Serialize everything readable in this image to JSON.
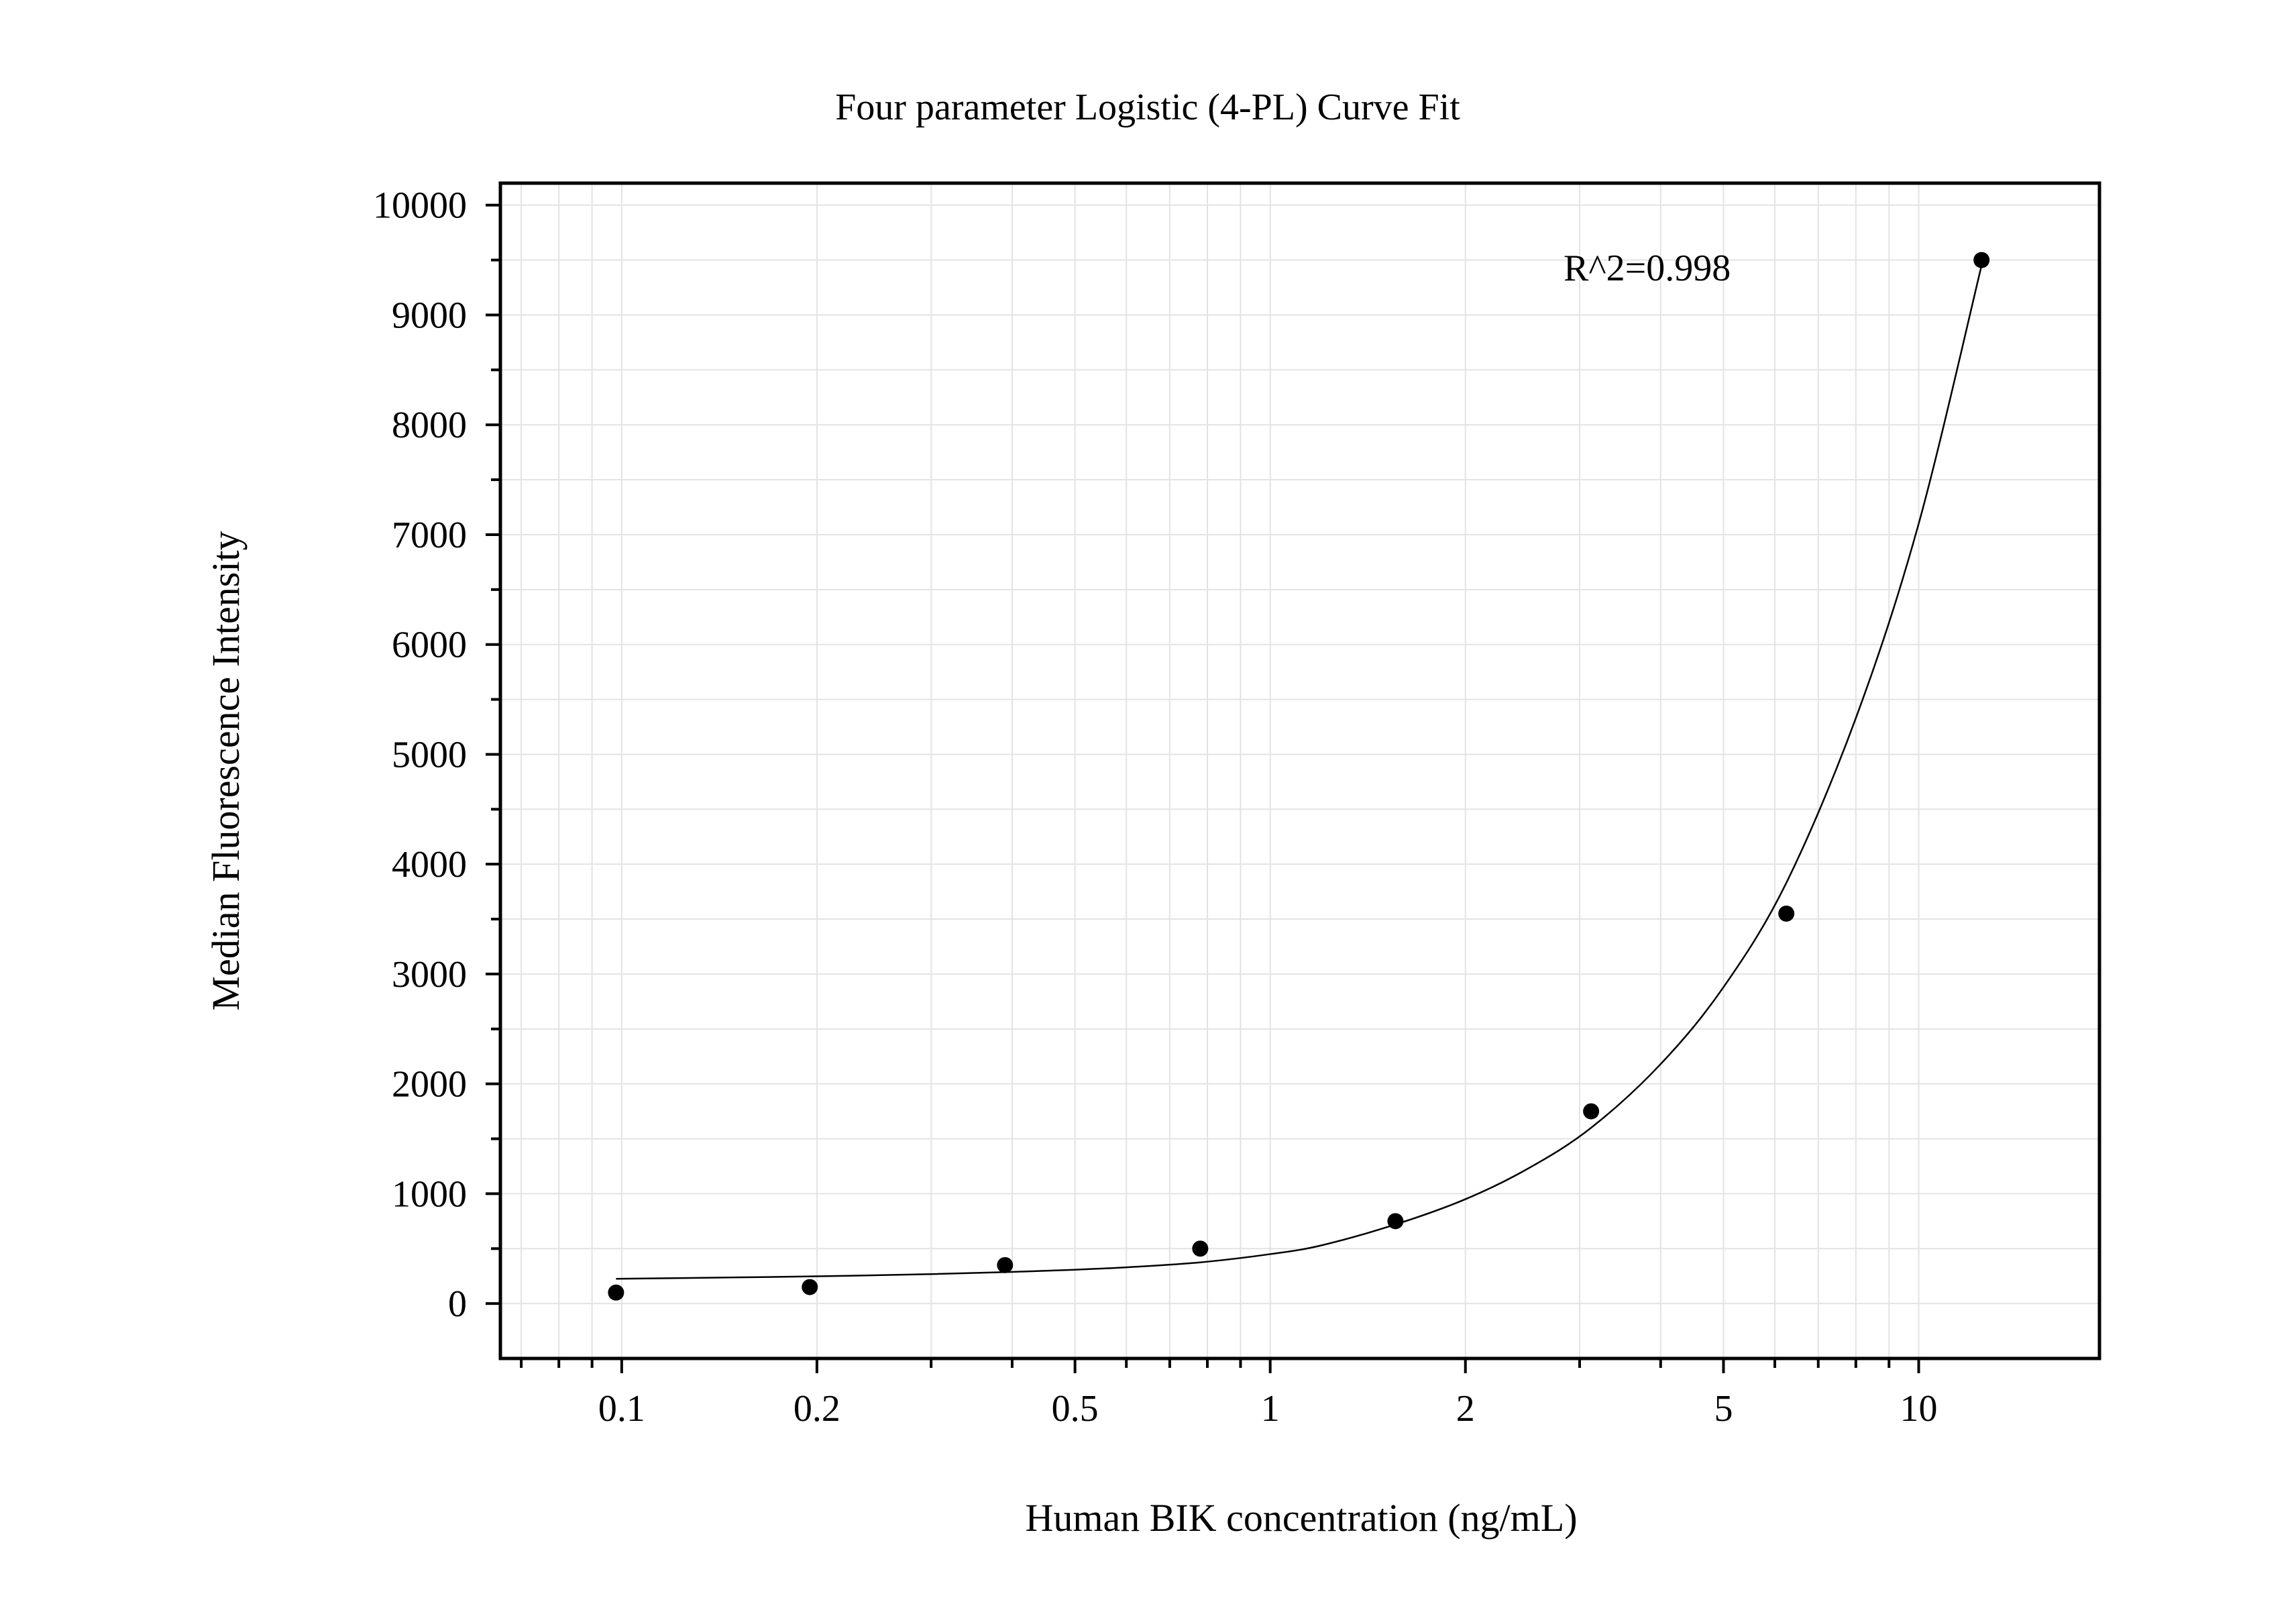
{
  "chart_data": {
    "type": "scatter",
    "title": "Four parameter Logistic (4-PL) Curve Fit",
    "xlabel": "Human BIK concentration (ng/mL)",
    "ylabel": "Median Fluorescence Intensity",
    "x_scale": "log",
    "xlim": [
      0.065,
      19
    ],
    "ylim": [
      -500,
      10200
    ],
    "x_ticks": [
      0.1,
      0.2,
      0.5,
      1,
      2,
      5,
      10
    ],
    "x_tick_labels": [
      "0.1",
      "0.2",
      "0.5",
      "1",
      "2",
      "5",
      "10"
    ],
    "y_ticks": [
      0,
      1000,
      2000,
      3000,
      4000,
      5000,
      6000,
      7000,
      8000,
      9000,
      10000
    ],
    "y_tick_labels": [
      "0",
      "1000",
      "2000",
      "3000",
      "4000",
      "5000",
      "6000",
      "7000",
      "8000",
      "9000",
      "10000"
    ],
    "grid": true,
    "series": [
      {
        "kind": "points",
        "x": [
          0.098,
          0.195,
          0.39,
          0.78,
          1.56,
          3.125,
          6.25,
          12.5
        ],
        "y": [
          100,
          150,
          350,
          500,
          750,
          1750,
          3550,
          9500
        ]
      },
      {
        "kind": "fit-curve",
        "x": [
          0.098,
          0.15,
          0.2,
          0.3,
          0.4,
          0.5,
          0.6,
          0.78,
          1,
          1.2,
          1.56,
          2,
          2.5,
          3.125,
          4,
          5,
          6.25,
          8,
          10,
          12.5
        ],
        "y": [
          225,
          238,
          248,
          268,
          288,
          308,
          330,
          375,
          450,
          530,
          720,
          950,
          1230,
          1600,
          2180,
          2880,
          3830,
          5330,
          7100,
          9450
        ]
      }
    ],
    "annotations": [
      {
        "text": "R^2=0.998"
      }
    ]
  }
}
